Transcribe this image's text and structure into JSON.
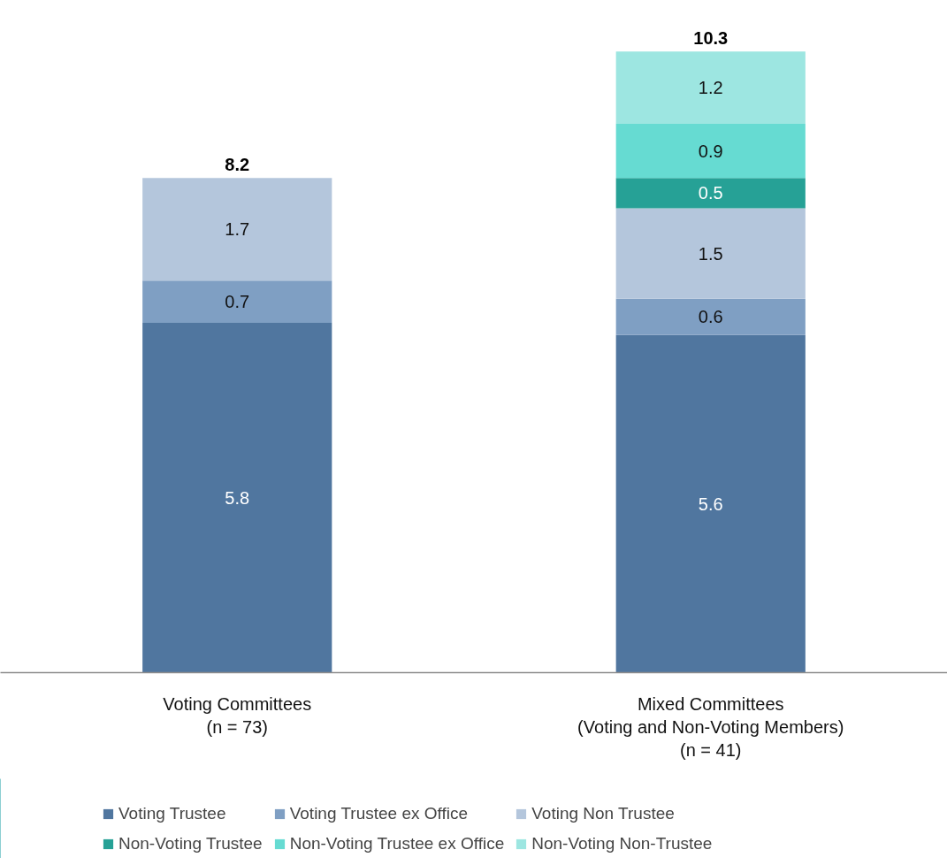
{
  "chart_data": {
    "type": "bar",
    "stacked": true,
    "data_labels": true,
    "grid": false,
    "legend": "bottom",
    "categories": [
      "Voting Committees\n(n = 73)",
      "Mixed Committees\n(Voting and Non-Voting Members)\n(n = 41)"
    ],
    "series": [
      {
        "name": "Voting Trustee",
        "color": "#50769f",
        "values": [
          5.8,
          5.6
        ]
      },
      {
        "name": "Voting Trustee ex Office",
        "color": "#7f9fc3",
        "values": [
          0.7,
          0.6
        ]
      },
      {
        "name": "Voting Non Trustee",
        "color": "#b4c6dc",
        "values": [
          1.7,
          1.5
        ]
      },
      {
        "name": "Non-Voting Trustee",
        "color": "#26a196",
        "values": [
          null,
          0.5
        ]
      },
      {
        "name": "Non-Voting Trustee ex Office",
        "color": "#66dbd2",
        "values": [
          null,
          0.9
        ]
      },
      {
        "name": "Non-Voting Non-Trustee",
        "color": "#9de6e1",
        "values": [
          null,
          1.2
        ]
      }
    ],
    "totals": [
      "8.2",
      "10.3"
    ]
  }
}
